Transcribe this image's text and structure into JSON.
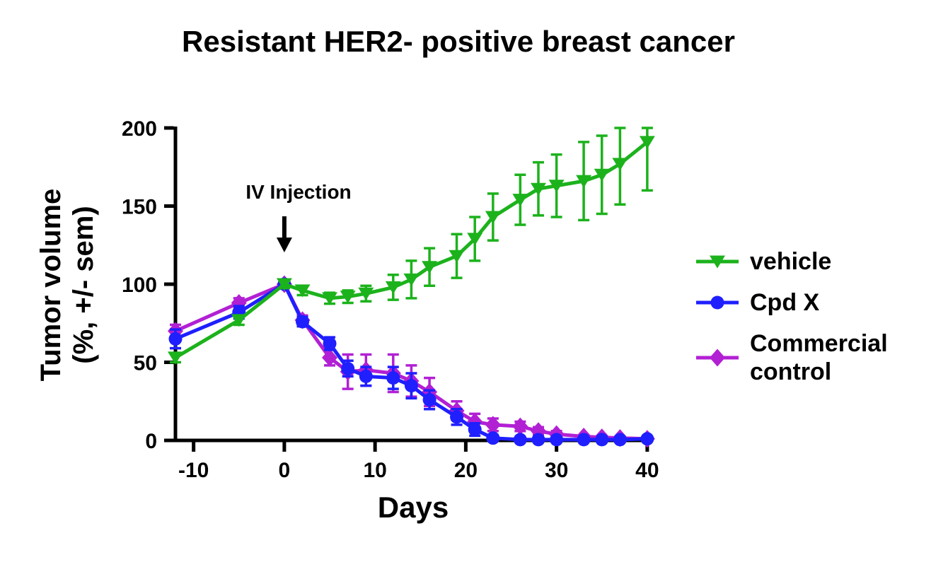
{
  "title": "Resistant HER2- positive breast cancer",
  "annotation": {
    "text": "IV Injection",
    "day": 0
  },
  "axes": {
    "x_label": "Days",
    "y_label_line1": "Tumor volume",
    "y_label_line2": "(%, +/- sem)",
    "x_ticks": [
      -10,
      0,
      10,
      20,
      30,
      40
    ],
    "y_ticks": [
      0,
      50,
      100,
      150,
      200
    ]
  },
  "chart_data": {
    "type": "line",
    "title": "Resistant HER2- positive breast cancer",
    "xlabel": "Days",
    "ylabel": "Tumor volume (%, +/- sem)",
    "xlim": [
      -12,
      40.4
    ],
    "ylim": [
      0,
      200
    ],
    "grid": false,
    "legend_position": "right",
    "error_bars": "sem",
    "x": [
      -12,
      -5,
      0,
      2,
      5,
      7,
      9,
      12,
      14,
      16,
      19,
      21,
      23,
      26,
      28,
      30,
      33,
      35,
      37,
      40
    ],
    "series": [
      {
        "name": "Commercial control",
        "marker": "diamond",
        "color": "#b220d4",
        "values": [
          70,
          88,
          100,
          77,
          53,
          44,
          45,
          43,
          38,
          31,
          19,
          12,
          10,
          9,
          6,
          4,
          2.5,
          2,
          1.5,
          1
        ],
        "sem": [
          4,
          3,
          2.5,
          3,
          5,
          11,
          10,
          12,
          10,
          9,
          6,
          5,
          4,
          3,
          2.5,
          2,
          1,
          1,
          1,
          1
        ]
      },
      {
        "name": "Cpd X",
        "marker": "circle",
        "color": "#1f1fff",
        "values": [
          65,
          82,
          100,
          76,
          62,
          46,
          41,
          40,
          35,
          26,
          15,
          7,
          1.5,
          0.5,
          0.5,
          0.5,
          0.5,
          0.5,
          0.5,
          1
        ],
        "sem": [
          6,
          4,
          2.5,
          3,
          4,
          5,
          6,
          7,
          8,
          6,
          5,
          4,
          2,
          1,
          1,
          1,
          1,
          1,
          1,
          1
        ]
      },
      {
        "name": "vehicle",
        "marker": "triangle-down",
        "color": "#1cb21c",
        "values": [
          53,
          77,
          100,
          96,
          91,
          92,
          94,
          98,
          103,
          111,
          118,
          129,
          143,
          154,
          161,
          163,
          166,
          170,
          177,
          191
        ],
        "sem": [
          3,
          3,
          2.5,
          3,
          3.5,
          4,
          5,
          8,
          12,
          12,
          14,
          14,
          15,
          16,
          17,
          20,
          25,
          25,
          26,
          31
        ]
      }
    ]
  }
}
